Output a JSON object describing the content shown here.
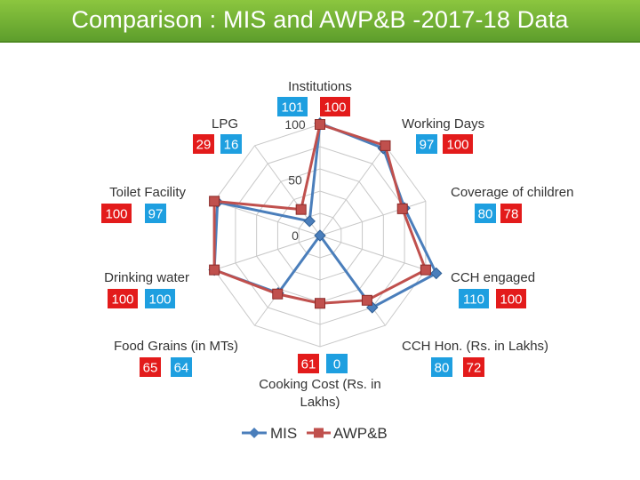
{
  "title": "Comparison : MIS and AWP&B -2017-18 Data",
  "colors": {
    "mis": "#4a7ebb",
    "awpb": "#c0504d",
    "badge_blue": "#1e9fe0",
    "badge_red": "#e31b1b",
    "grid": "#c8c8c8"
  },
  "chart_data": {
    "type": "radar",
    "title": "",
    "range": [
      0,
      100
    ],
    "ticks": [
      "0",
      "50",
      "100"
    ],
    "categories": [
      {
        "label": [
          "Institutions"
        ],
        "mis": 101,
        "awpb": 100
      },
      {
        "label": [
          "Working Days"
        ],
        "mis": 97,
        "awpb": 100
      },
      {
        "label": [
          "Coverage of children"
        ],
        "mis": 80,
        "awpb": 78
      },
      {
        "label": [
          "CCH engaged"
        ],
        "mis": 110,
        "awpb": 100
      },
      {
        "label": [
          "CCH Hon. (Rs. in Lakhs)"
        ],
        "mis": 80,
        "awpb": 72
      },
      {
        "label": [
          "Cooking Cost (Rs. in",
          "Lakhs)"
        ],
        "mis": 0,
        "awpb": 61
      },
      {
        "label": [
          "Food Grains (in MTs)"
        ],
        "mis": 64,
        "awpb": 65
      },
      {
        "label": [
          "Drinking water"
        ],
        "mis": 100,
        "awpb": 100
      },
      {
        "label": [
          "Toilet Facility"
        ],
        "mis": 97,
        "awpb": 100
      },
      {
        "label": [
          "LPG"
        ],
        "mis": 16,
        "awpb": 29
      }
    ],
    "series": [
      {
        "key": "mis",
        "name": "MIS"
      },
      {
        "key": "awpb",
        "name": "AWP&B"
      }
    ],
    "legend": "bottom"
  }
}
